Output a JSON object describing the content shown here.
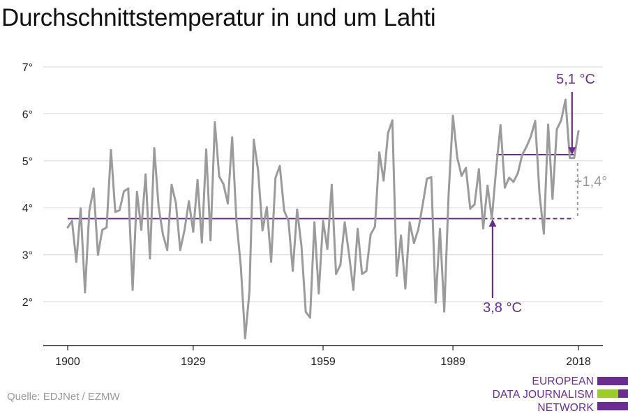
{
  "title": "Durchschnittstemperatur in und um Lahti",
  "source": "Quelle: EDJNet / EZMW",
  "logo": {
    "lines": [
      "EUROPEAN",
      "DATA JOURNALISM",
      "NETWORK"
    ],
    "colors": [
      "#6b2c91",
      "#9ccc2a",
      "#6b2c91"
    ]
  },
  "chart_data": {
    "type": "line",
    "title": "Durchschnittstemperatur in und um Lahti",
    "xlabel": "",
    "ylabel": "",
    "xlim": [
      1900,
      2018
    ],
    "ylim": [
      1.2,
      7.2
    ],
    "x_ticks": [
      1900,
      1929,
      1959,
      1989,
      2018
    ],
    "x_tick_labels": [
      "1900",
      "1929",
      "1959",
      "1989",
      "2018"
    ],
    "y_ticks": [
      2,
      3,
      4,
      5,
      6,
      7
    ],
    "y_tick_labels": [
      "2°",
      "3°",
      "4°",
      "5°",
      "6°",
      "7°"
    ],
    "grid": "horizontal",
    "series": [
      {
        "color": "#9b9b9b",
        "x": [
          1900,
          1901,
          1902,
          1903,
          1904,
          1905,
          1906,
          1907,
          1908,
          1909,
          1910,
          1911,
          1912,
          1913,
          1914,
          1915,
          1916,
          1917,
          1918,
          1919,
          1920,
          1921,
          1922,
          1923,
          1924,
          1925,
          1926,
          1927,
          1928,
          1929,
          1930,
          1931,
          1932,
          1933,
          1934,
          1935,
          1936,
          1937,
          1938,
          1939,
          1940,
          1941,
          1942,
          1943,
          1944,
          1945,
          1946,
          1947,
          1948,
          1949,
          1950,
          1951,
          1952,
          1953,
          1954,
          1955,
          1956,
          1957,
          1958,
          1959,
          1960,
          1961,
          1962,
          1963,
          1964,
          1965,
          1966,
          1967,
          1968,
          1969,
          1970,
          1971,
          1972,
          1973,
          1974,
          1975,
          1976,
          1977,
          1978,
          1979,
          1980,
          1981,
          1982,
          1983,
          1984,
          1985,
          1986,
          1987,
          1988,
          1989,
          1990,
          1991,
          1992,
          1993,
          1994,
          1995,
          1996,
          1997,
          1998,
          1999,
          2000,
          2001,
          2002,
          2003,
          2004,
          2005,
          2006,
          2007,
          2008,
          2009,
          2010,
          2011,
          2012,
          2013,
          2014,
          2015,
          2016,
          2017,
          2018
        ],
        "values": [
          3.58,
          3.72,
          2.85,
          3.99,
          2.2,
          3.93,
          4.41,
          3.0,
          3.53,
          3.58,
          5.23,
          3.91,
          3.95,
          4.35,
          4.41,
          2.25,
          4.34,
          3.53,
          4.71,
          2.92,
          5.27,
          4.02,
          3.43,
          3.1,
          4.49,
          4.1,
          3.1,
          3.53,
          4.14,
          3.49,
          4.59,
          3.26,
          5.24,
          3.31,
          5.82,
          4.67,
          4.5,
          4.09,
          5.5,
          3.71,
          2.76,
          1.22,
          2.22,
          5.45,
          4.79,
          3.52,
          4.01,
          2.85,
          4.64,
          4.89,
          3.94,
          3.72,
          2.66,
          3.96,
          3.19,
          1.78,
          1.66,
          3.69,
          2.18,
          3.72,
          3.12,
          4.49,
          2.59,
          2.78,
          3.69,
          3.01,
          2.25,
          3.55,
          2.59,
          2.65,
          3.43,
          3.6,
          5.18,
          4.58,
          5.59,
          5.86,
          2.55,
          3.41,
          2.28,
          3.69,
          3.25,
          3.54,
          4.06,
          4.62,
          4.65,
          1.98,
          3.55,
          1.79,
          4.28,
          5.96,
          5.07,
          4.68,
          4.85,
          3.98,
          4.07,
          4.82,
          3.56,
          4.47,
          3.77,
          4.84,
          5.76,
          4.43,
          4.64,
          4.55,
          4.74,
          5.13,
          5.3,
          5.52,
          5.85,
          4.29,
          3.45,
          5.77,
          4.19,
          5.67,
          5.86,
          6.3,
          5.06,
          5.06,
          5.63
        ]
      }
    ],
    "reference_lines": [
      {
        "label": "3,8 °C",
        "value": 3.77,
        "x_start": 1900,
        "x_solid_end": 1996,
        "x_end": 2018,
        "style": "solid then dashed",
        "color": "#6b2c91"
      },
      {
        "label": "5,1 °C",
        "value": 5.13,
        "x_start": 1999,
        "x_end": 2018,
        "style": "solid",
        "color": "#6b2c91"
      }
    ],
    "annotations": [
      {
        "text": "5,1 °C",
        "color": "#6b2c91",
        "arrow_x": 2017,
        "arrow_to": 5.13,
        "from": "above"
      },
      {
        "text": "3,8 °C",
        "color": "#6b2c91",
        "arrow_x": 1998,
        "arrow_to": 3.77,
        "from": "below"
      },
      {
        "text": "+1,4°",
        "color": "#9b9b9b",
        "from_value": 3.77,
        "to_value": 5.13,
        "x": 2017
      }
    ]
  }
}
